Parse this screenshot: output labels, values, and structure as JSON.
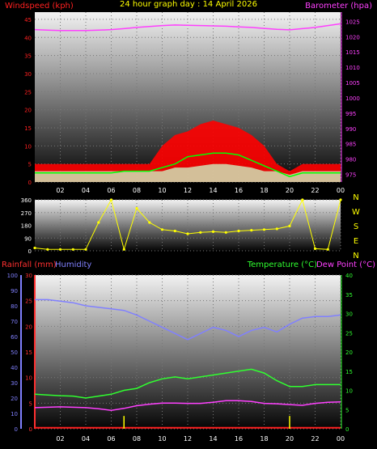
{
  "title": "24 hour graph day : 14 April 2026",
  "colors": {
    "wind_axis": "#ff2020",
    "baro_axis": "#ff40ff",
    "bearing_axis": "#ffff00",
    "rain_axis": "#ff3030",
    "humidity_axis": "#8080ff",
    "temp_axis": "#30ff30",
    "dew_axis": "#ff40ff",
    "hour_labels": "#ffffff"
  },
  "hour_ticks": [
    "02",
    "04",
    "06",
    "08",
    "10",
    "12",
    "14",
    "16",
    "18",
    "20",
    "22",
    "00"
  ],
  "chart_data": [
    {
      "type": "line",
      "name": "wind-and-barometer",
      "left_axis": {
        "label": "Windspeed (kph)",
        "ticks": [
          0,
          5,
          10,
          15,
          20,
          25,
          30,
          35,
          40,
          45
        ],
        "ylim": [
          0,
          47
        ]
      },
      "right_axis": {
        "label": "Barometer (hpa)",
        "ticks": [
          975,
          980,
          985,
          990,
          995,
          1000,
          1005,
          1010,
          1015,
          1020,
          1025
        ],
        "ylim": [
          972.5,
          1028
        ]
      },
      "x": [
        0,
        1,
        2,
        3,
        4,
        5,
        6,
        7,
        8,
        9,
        10,
        11,
        12,
        13,
        14,
        15,
        16,
        17,
        18,
        19,
        20,
        21,
        22,
        23,
        24
      ],
      "series": [
        {
          "kind": "barometer",
          "color": "#ff40ff",
          "values": [
            1022.3,
            1022.1,
            1022.0,
            1022.0,
            1022.0,
            1022.1,
            1022.3,
            1022.6,
            1023.0,
            1023.3,
            1023.6,
            1023.8,
            1023.7,
            1023.6,
            1023.5,
            1023.4,
            1023.2,
            1023.0,
            1022.7,
            1022.4,
            1022.2,
            1022.6,
            1023.0,
            1023.6,
            1024.2
          ]
        },
        {
          "kind": "gust",
          "color": "#ff0000",
          "values": [
            5,
            5,
            5,
            5,
            5,
            5,
            5,
            5,
            5,
            5,
            10,
            13,
            14,
            16,
            17,
            16,
            15,
            13,
            10,
            5,
            3,
            5,
            5,
            5,
            5
          ]
        },
        {
          "kind": "average",
          "color": "#00ff00",
          "values": [
            2.5,
            2.5,
            2.5,
            2.5,
            2.5,
            2.5,
            2.5,
            3,
            3,
            3,
            4,
            5,
            7,
            7.5,
            8,
            8,
            7.5,
            6,
            4.5,
            3,
            1.5,
            2.5,
            2.5,
            2.5,
            2.5
          ]
        },
        {
          "kind": "latest",
          "color": "#ccffcc",
          "values": [
            3,
            3,
            3,
            3,
            3,
            3,
            3,
            3,
            3,
            3,
            3,
            4,
            4,
            4.5,
            5,
            5,
            4.5,
            4,
            3,
            3,
            2,
            3,
            3,
            3,
            3
          ]
        }
      ]
    },
    {
      "type": "scatter",
      "name": "wind-bearing",
      "left_axis": {
        "ticks": [
          0,
          90,
          180,
          270,
          360
        ],
        "ylim": [
          0,
          360
        ]
      },
      "right_axis": {
        "labels": [
          "N",
          "W",
          "S",
          "E",
          "N"
        ]
      },
      "x": [
        0,
        1,
        2,
        3,
        4,
        5,
        6,
        7,
        8,
        9,
        10,
        11,
        12,
        13,
        14,
        15,
        16,
        17,
        18,
        19,
        20,
        21,
        22,
        23,
        24
      ],
      "series": [
        {
          "kind": "bearing",
          "color": "#ffff00",
          "values": [
            20,
            10,
            10,
            10,
            10,
            200,
            360,
            10,
            300,
            200,
            150,
            140,
            120,
            130,
            135,
            130,
            140,
            145,
            150,
            155,
            175,
            360,
            15,
            10,
            360
          ]
        }
      ]
    },
    {
      "type": "line",
      "name": "rain-humidity-temperature",
      "left_outer_axis": {
        "label": "Humidity",
        "ticks": [
          0,
          10,
          20,
          30,
          40,
          50,
          60,
          70,
          80,
          90,
          100
        ],
        "ylim": [
          0,
          100
        ]
      },
      "left_inner_axis": {
        "label": "Rainfall (mm)",
        "ticks": [
          0,
          5,
          10,
          15,
          20,
          25,
          30
        ],
        "ylim": [
          0,
          30
        ]
      },
      "right_axis": {
        "label": "Temperature (°C)",
        "label2": "Dew Point (°C)",
        "ticks": [
          0,
          5,
          10,
          15,
          20,
          25,
          30,
          35,
          40
        ],
        "ylim": [
          0,
          40
        ]
      },
      "x": [
        0,
        1,
        2,
        3,
        4,
        5,
        6,
        7,
        8,
        9,
        10,
        11,
        12,
        13,
        14,
        15,
        16,
        17,
        18,
        19,
        20,
        21,
        22,
        23,
        24
      ],
      "series": [
        {
          "kind": "humidity",
          "color": "#8080ff",
          "values": [
            84,
            84,
            83,
            82,
            80,
            79,
            78,
            77,
            74,
            70,
            66,
            62,
            58,
            62,
            66,
            64,
            60,
            64,
            66,
            63,
            68,
            72,
            73,
            73,
            74
          ]
        },
        {
          "kind": "temperature",
          "color": "#30ff30",
          "values": [
            9.0,
            8.8,
            8.6,
            8.5,
            8.0,
            8.5,
            9.0,
            10.0,
            10.5,
            12.0,
            13.0,
            13.5,
            13.0,
            13.5,
            14.0,
            14.5,
            15.0,
            15.5,
            14.5,
            12.5,
            11.0,
            11.0,
            11.5,
            11.5,
            11.5
          ]
        },
        {
          "kind": "dewpoint",
          "color": "#ff40ff",
          "values": [
            5.5,
            5.6,
            5.7,
            5.6,
            5.5,
            5.2,
            4.8,
            5.3,
            6.0,
            6.4,
            6.7,
            6.7,
            6.6,
            6.6,
            6.9,
            7.3,
            7.3,
            7.1,
            6.6,
            6.5,
            6.3,
            6.1,
            6.6,
            6.9,
            7.0
          ]
        },
        {
          "kind": "rain",
          "color": "#ff2020",
          "values": [
            0.2,
            0.2,
            0.2,
            0.2,
            0.2,
            0.2,
            0.2,
            0.2,
            0.2,
            0.2,
            0.2,
            0.2,
            0.2,
            0.2,
            0.2,
            0.2,
            0.2,
            0.2,
            0.2,
            0.2,
            0.2,
            0.2,
            0.2,
            0.2,
            0.2
          ]
        },
        {
          "kind": "rain-rate-marks",
          "color": "#ffff00",
          "x": [
            7,
            20
          ],
          "values": [
            2.5,
            2.5
          ]
        }
      ]
    }
  ]
}
